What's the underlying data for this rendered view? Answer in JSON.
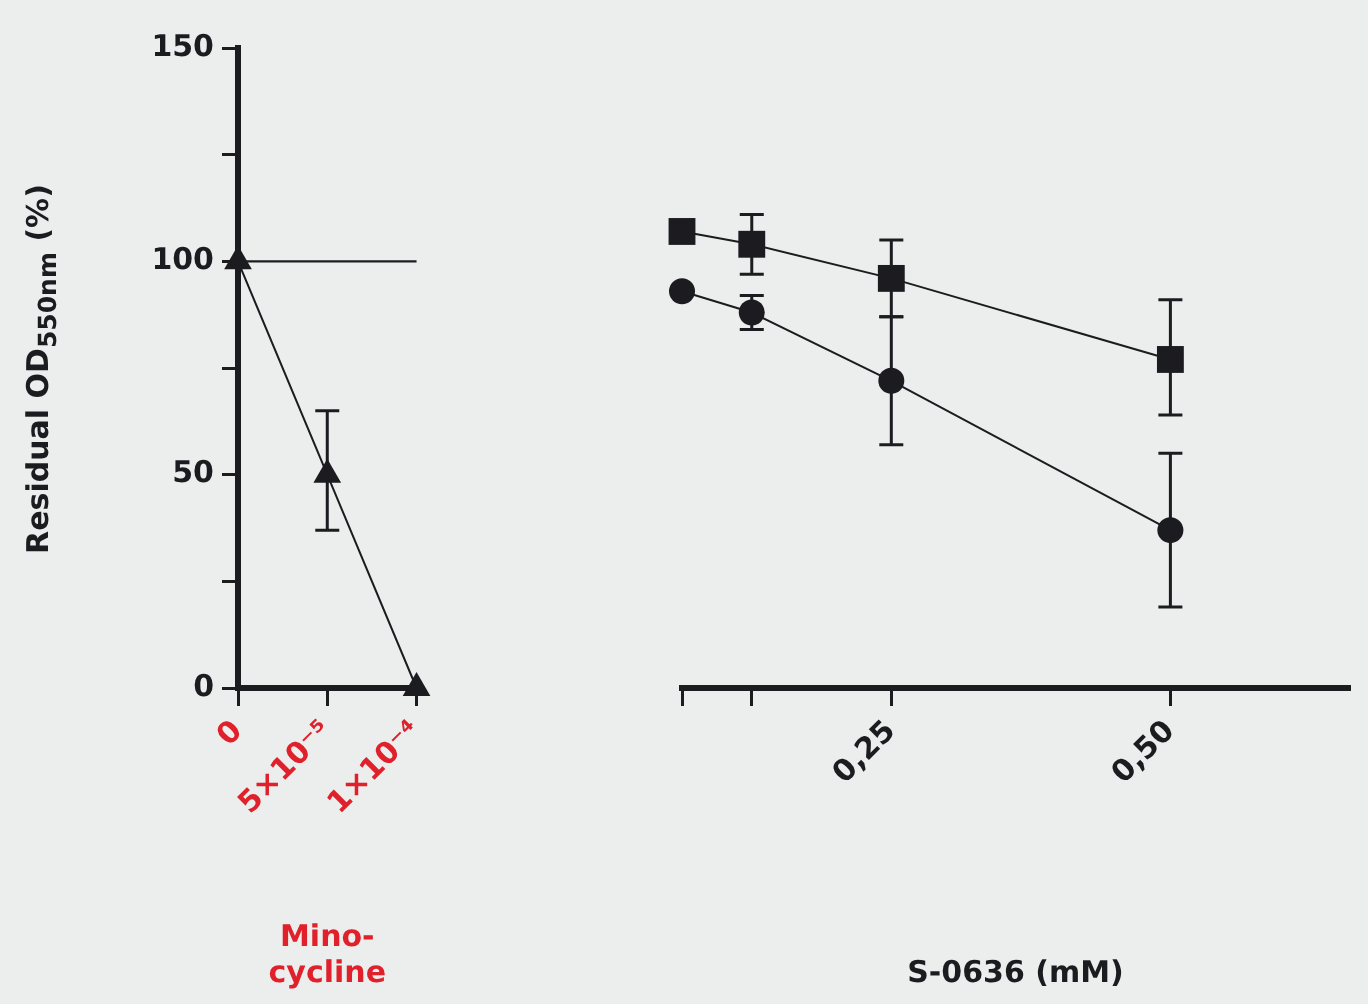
{
  "chart_data": [
    {
      "type": "line",
      "categories": [
        "0",
        "5×10⁻⁵",
        "1×10⁻⁴"
      ],
      "xlabel": "Mino-cycline",
      "ylabel": "Residual OD$_{550nm}$ (%)",
      "ylim": [
        0,
        150
      ],
      "yticks": [
        0,
        {
          "value": 25,
          "label": null
        },
        50,
        {
          "value": 75,
          "label": null
        },
        100,
        {
          "value": 125,
          "label": null
        },
        150
      ],
      "series": [
        {
          "color": "#1c1c20",
          "marker": "triangle",
          "values": [
            100,
            50,
            0
          ],
          "errors": [
            null,
            [
              37,
              65
            ],
            null
          ]
        }
      ],
      "ref_lines": [
        {
          "axis": "y",
          "value": 100,
          "color": "#1c1c20"
        }
      ]
    },
    {
      "type": "line",
      "x": [
        0.0625,
        0.125,
        0.25,
        0.5
      ],
      "xlabel": "S-0636 (mM)",
      "xlim": [
        0.0625,
        0.66
      ],
      "xticks": [
        {
          "value": 0.0625,
          "label": null
        },
        {
          "value": 0.125,
          "label": null
        },
        {
          "value": 0.25,
          "label": "0,25"
        },
        {
          "value": 0.5,
          "label": "0,50"
        }
      ],
      "ylim": [
        0,
        150
      ],
      "tick_labels": "x",
      "series": [
        {
          "color": "#1c1c20",
          "marker": "square",
          "values": [
            107,
            104,
            96,
            77
          ],
          "errors": [
            null,
            [
              97,
              111
            ],
            [
              87,
              105
            ],
            [
              64,
              91
            ]
          ]
        },
        {
          "color": "#1c1c20",
          "marker": "circle",
          "values": [
            93,
            88,
            72,
            37
          ],
          "errors": [
            null,
            [
              84,
              92
            ],
            [
              57,
              87
            ],
            [
              19,
              55
            ]
          ]
        }
      ]
    }
  ]
}
